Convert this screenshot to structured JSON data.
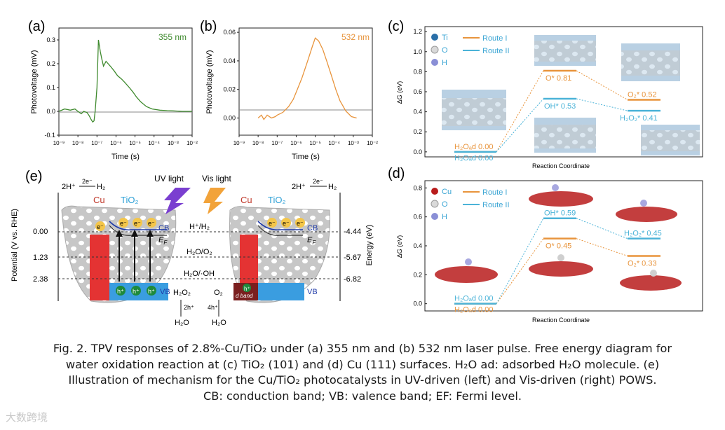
{
  "panels": {
    "a": {
      "label": "(a)",
      "annotation": "355 nm",
      "color": "#3f8a2e",
      "ylabel": "Photovoltage (mV)",
      "xlabel": "Time (s)"
    },
    "b": {
      "label": "(b)",
      "annotation": "532 nm",
      "color": "#e8943c",
      "ylabel": "Photovoltage (mV)",
      "xlabel": "Time (s)"
    },
    "c": {
      "label": "(c)",
      "ylabel": "ΔG (eV)",
      "xlabel": "Reaction Coordinate",
      "legend_atoms": [
        "Ti",
        "O",
        "H"
      ],
      "legend_routes": [
        "Route I",
        "Route II"
      ],
      "levels": [
        "H₂Oₐd 0.00",
        "H₂Oₐd 0.00",
        "O* 0.81",
        "OH* 0.53",
        "O₂* 0.52",
        "H₂O₂* 0.41"
      ]
    },
    "d": {
      "label": "(d)",
      "ylabel": "ΔG (eV)",
      "xlabel": "Reaction Coordinate",
      "legend_atoms": [
        "Cu",
        "O",
        "H"
      ],
      "legend_routes": [
        "Route I",
        "Route II"
      ],
      "levels": [
        "H₂Oₐd 0.00",
        "H₂Oₐd 0.00",
        "OH* 0.59",
        "O* 0.45",
        "H₂O₂* 0.45",
        "O₂* 0.33"
      ]
    },
    "e": {
      "label": "(e)",
      "uv_label": "UV light",
      "vis_label": "Vis light",
      "ylabel_left": "Potential (V vs. RHE)",
      "ylabel_right": "Energy (eV)",
      "potentials": [
        "0.00",
        "1.23",
        "2.38"
      ],
      "energies": [
        "-4.44",
        "-5.67",
        "-6.82"
      ],
      "redox": [
        "H⁺/H₂",
        "H₂O/O₂",
        "H₂O/·OH"
      ],
      "cu": "Cu",
      "tio2": "TiO₂",
      "cb": "CB",
      "vb": "VB",
      "ef": "E",
      "ef_sub": "F",
      "electron": "e⁻",
      "hole": "h⁺",
      "dband": "d band",
      "h2_reaction": "2H⁺",
      "h2_arrow_label": "2e⁻",
      "h2": "H₂",
      "h2o2": "H₂O₂",
      "o2": "O₂",
      "h2o": "H₂O",
      "two_h": "2h⁺",
      "four_h": "4h⁺"
    }
  },
  "chart_data": [
    {
      "type": "line",
      "title": "(a) 355 nm",
      "xlabel": "Time (s)",
      "ylabel": "Photovoltage (mV)",
      "xscale": "log",
      "xlim": [
        1e-09,
        0.01
      ],
      "ylim": [
        -0.1,
        0.35
      ],
      "xticks": [
        "10⁻⁹",
        "10⁻⁸",
        "10⁻⁷",
        "10⁻⁶",
        "10⁻⁵",
        "10⁻⁴",
        "10⁻³",
        "10⁻²"
      ],
      "yticks": [
        "-0.1",
        "0.0",
        "0.1",
        "0.2",
        "0.3"
      ],
      "series": [
        {
          "name": "355 nm",
          "x": [
            1e-09,
            2e-09,
            4e-09,
            7e-09,
            1e-08,
            1.5e-08,
            2e-08,
            3e-08,
            4e-08,
            5e-08,
            6e-08,
            7e-08,
            8e-08,
            1e-07,
            1.2e-07,
            1.5e-07,
            1.8e-07,
            2.2e-07,
            3e-07,
            5e-07,
            8e-07,
            1.2e-06,
            2e-06,
            3e-06,
            5e-06,
            8e-06,
            1.2e-05,
            2e-05,
            4e-05,
            8e-05,
            0.0002,
            0.0005,
            0.001,
            0.003,
            0.01
          ],
          "y": [
            0.0,
            0.01,
            0.005,
            0.01,
            0.0,
            -0.01,
            0.0,
            -0.005,
            -0.02,
            -0.035,
            -0.045,
            -0.04,
            0.0,
            0.1,
            0.3,
            0.25,
            0.22,
            0.19,
            0.21,
            0.19,
            0.17,
            0.15,
            0.135,
            0.12,
            0.1,
            0.08,
            0.06,
            0.04,
            0.02,
            0.01,
            0.005,
            0.003,
            0.002,
            0.0,
            0.0
          ]
        }
      ]
    },
    {
      "type": "line",
      "title": "(b) 532 nm",
      "xlabel": "Time (s)",
      "ylabel": "Photovoltage (mV)",
      "xscale": "log",
      "xlim": [
        1e-09,
        0.01
      ],
      "ylim": [
        -0.012,
        0.063
      ],
      "xticks": [
        "10⁻⁹",
        "10⁻⁸",
        "10⁻⁷",
        "10⁻⁶",
        "10⁻⁵",
        "10⁻⁴",
        "10⁻³",
        "10⁻²"
      ],
      "yticks": [
        "0.00",
        "0.02",
        "0.04",
        "0.06"
      ],
      "series": [
        {
          "name": "532 nm",
          "x": [
            1e-08,
            1.5e-08,
            2e-08,
            3e-08,
            5e-08,
            8e-08,
            1e-07,
            2e-07,
            4e-07,
            7e-07,
            1e-06,
            2e-06,
            4e-06,
            7e-06,
            1e-05,
            1.5e-05,
            2.5e-05,
            4e-05,
            7e-05,
            0.00012,
            0.0002,
            0.0004,
            0.0008,
            0.0015
          ],
          "y": [
            0.0,
            0.002,
            -0.001,
            0.002,
            0.0,
            0.001,
            0.002,
            0.004,
            0.008,
            0.013,
            0.018,
            0.028,
            0.04,
            0.05,
            0.056,
            0.054,
            0.048,
            0.04,
            0.03,
            0.02,
            0.012,
            0.005,
            0.001,
            0.0
          ]
        }
      ]
    },
    {
      "type": "line",
      "title": "(c) TiO₂ (101)",
      "xlabel": "Reaction Coordinate",
      "ylabel": "ΔG (eV)",
      "ylim": [
        -0.05,
        1.25
      ],
      "yticks": [
        "0.0",
        "0.2",
        "0.4",
        "0.6",
        "0.8",
        "1.0",
        "1.2"
      ],
      "series": [
        {
          "name": "Route I",
          "color": "#e8943c",
          "values": [
            0.0,
            0.81,
            0.52
          ]
        },
        {
          "name": "Route II",
          "color": "#4bb3d8",
          "values": [
            0.0,
            0.53,
            0.41
          ]
        }
      ]
    },
    {
      "type": "line",
      "title": "(d) Cu (111)",
      "xlabel": "Reaction Coordinate",
      "ylabel": "ΔG (eV)",
      "ylim": [
        -0.05,
        0.85
      ],
      "yticks": [
        "0.0",
        "0.2",
        "0.4",
        "0.6",
        "0.8"
      ],
      "series": [
        {
          "name": "Route I",
          "color": "#e8943c",
          "values": [
            0.0,
            0.45,
            0.33
          ]
        },
        {
          "name": "Route II",
          "color": "#4bb3d8",
          "values": [
            0.0,
            0.59,
            0.45
          ]
        }
      ]
    }
  ],
  "caption": {
    "line1": "Fig. 2. TPV responses of 2.8%-Cu/TiO₂ under (a) 355 nm and (b) 532 nm laser pulse. Free energy diagram for",
    "line2": "water oxidation reaction at (c) TiO₂ (101) and (d) Cu (111) surfaces. H₂O ad: adsorbed H₂O molecule. (e)",
    "line3": "Illustration of mechanism for the Cu/TiO₂ photocatalysts in UV-driven (left) and Vis-driven (right) POWS.",
    "line4": "CB: conduction band; VB: valence band; EF: Fermi level."
  },
  "watermark": "大数跨境"
}
